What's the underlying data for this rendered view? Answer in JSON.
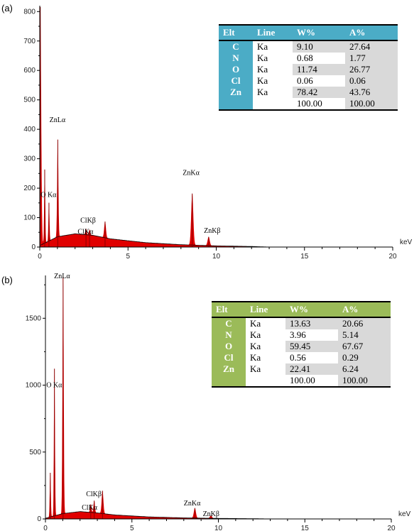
{
  "panels": [
    {
      "label": "(a)",
      "table": {
        "headers": [
          "Elt",
          "Line",
          "W%",
          "A%"
        ],
        "rows": [
          {
            "elt": "C",
            "line": "Ka",
            "w": "9.10",
            "a": "27.64"
          },
          {
            "elt": "N",
            "line": "Ka",
            "w": "0.68",
            "a": "1.77"
          },
          {
            "elt": "O",
            "line": "Ka",
            "w": "11.74",
            "a": "26.77"
          },
          {
            "elt": "Cl",
            "line": "Ka",
            "w": "0.06",
            "a": "0.06"
          },
          {
            "elt": "Zn",
            "line": "Ka",
            "w": "78.42",
            "a": "43.76"
          },
          {
            "elt": "",
            "line": "",
            "w": "100.00",
            "a": "100.00"
          }
        ],
        "accent": "#4bacc6"
      }
    },
    {
      "label": "(b)",
      "table": {
        "headers": [
          "Elt",
          "Line",
          "W%",
          "A%"
        ],
        "rows": [
          {
            "elt": "C",
            "line": "Ka",
            "w": "13.63",
            "a": "20.66"
          },
          {
            "elt": "N",
            "line": "Ka",
            "w": "3.96",
            "a": "5.14"
          },
          {
            "elt": "O",
            "line": "Ka",
            "w": "59.45",
            "a": "67.67"
          },
          {
            "elt": "Cl",
            "line": "Ka",
            "w": "0.56",
            "a": "0.29"
          },
          {
            "elt": "Zn",
            "line": "Ka",
            "w": "22.41",
            "a": "6.24"
          },
          {
            "elt": "",
            "line": "",
            "w": "100.00",
            "a": "100.00"
          }
        ],
        "accent": "#9bbb59"
      }
    }
  ],
  "chart_data": [
    {
      "type": "area",
      "xunit": "keV",
      "xlim": [
        0,
        20
      ],
      "ylim": [
        0,
        820
      ],
      "xticks": [
        0,
        5,
        10,
        15,
        20
      ],
      "yticks": [
        0,
        100,
        200,
        300,
        400,
        500,
        600,
        700,
        800
      ],
      "fill_color": "#e00000",
      "line_color": "#000000",
      "peaks": [
        {
          "x": 0.03,
          "y": 810,
          "width": 0.05
        },
        {
          "x": 0.28,
          "y": 250,
          "width": 0.03
        },
        {
          "x": 0.52,
          "y": 130,
          "width": 0.03
        },
        {
          "x": 1.02,
          "y": 330,
          "width": 0.035
        },
        {
          "x": 2.62,
          "y": 20,
          "width": 0.04
        },
        {
          "x": 2.82,
          "y": 18,
          "width": 0.04
        },
        {
          "x": 3.7,
          "y": 55,
          "width": 0.05
        },
        {
          "x": 8.64,
          "y": 175,
          "width": 0.06
        },
        {
          "x": 9.57,
          "y": 30,
          "width": 0.06
        }
      ],
      "background": [
        [
          0,
          5
        ],
        [
          1,
          35
        ],
        [
          2,
          45
        ],
        [
          3,
          40
        ],
        [
          4,
          28
        ],
        [
          6,
          15
        ],
        [
          8,
          8
        ],
        [
          10,
          4
        ],
        [
          12,
          2
        ],
        [
          13,
          0
        ]
      ],
      "annotations": [
        {
          "text": "ZnLα",
          "x": 0.55,
          "y": 425
        },
        {
          "text": "O Kα",
          "x": 0.05,
          "y": 170
        },
        {
          "text": "ClKβ",
          "x": 2.3,
          "y": 83
        },
        {
          "text": "ClKα",
          "x": 2.15,
          "y": 45
        },
        {
          "text": "ZnKα",
          "x": 8.1,
          "y": 245
        },
        {
          "text": "ZnKβ",
          "x": 9.3,
          "y": 48
        }
      ]
    },
    {
      "type": "area",
      "xunit": "keV",
      "xlim": [
        0,
        20
      ],
      "ylim": [
        0,
        1820
      ],
      "xticks": [
        0,
        5,
        10,
        15,
        20
      ],
      "yticks": [
        0,
        500,
        1000,
        1500
      ],
      "fill_color": "#e00000",
      "line_color": "#000000",
      "peaks": [
        {
          "x": 0.28,
          "y": 330,
          "width": 0.03
        },
        {
          "x": 0.52,
          "y": 1100,
          "width": 0.03
        },
        {
          "x": 1.02,
          "y": 1770,
          "width": 0.035
        },
        {
          "x": 2.62,
          "y": 60,
          "width": 0.04
        },
        {
          "x": 2.82,
          "y": 90,
          "width": 0.04
        },
        {
          "x": 3.3,
          "y": 170,
          "width": 0.05
        },
        {
          "x": 8.64,
          "y": 75,
          "width": 0.06
        },
        {
          "x": 9.57,
          "y": 20,
          "width": 0.06
        }
      ],
      "background": [
        [
          0,
          5
        ],
        [
          1,
          40
        ],
        [
          2,
          55
        ],
        [
          3,
          45
        ],
        [
          4,
          30
        ],
        [
          6,
          15
        ],
        [
          8,
          8
        ],
        [
          10,
          4
        ],
        [
          12,
          2
        ],
        [
          13,
          0
        ]
      ],
      "annotations": [
        {
          "text": "ZnLα",
          "x": 0.5,
          "y": 1800
        },
        {
          "text": "O Kα",
          "x": 0.05,
          "y": 985
        },
        {
          "text": "ClKβ",
          "x": 2.35,
          "y": 170
        },
        {
          "text": "ClKα",
          "x": 2.1,
          "y": 70
        },
        {
          "text": "ZnKα",
          "x": 8.0,
          "y": 100
        },
        {
          "text": "ZnKβ",
          "x": 9.1,
          "y": 20
        }
      ]
    }
  ]
}
